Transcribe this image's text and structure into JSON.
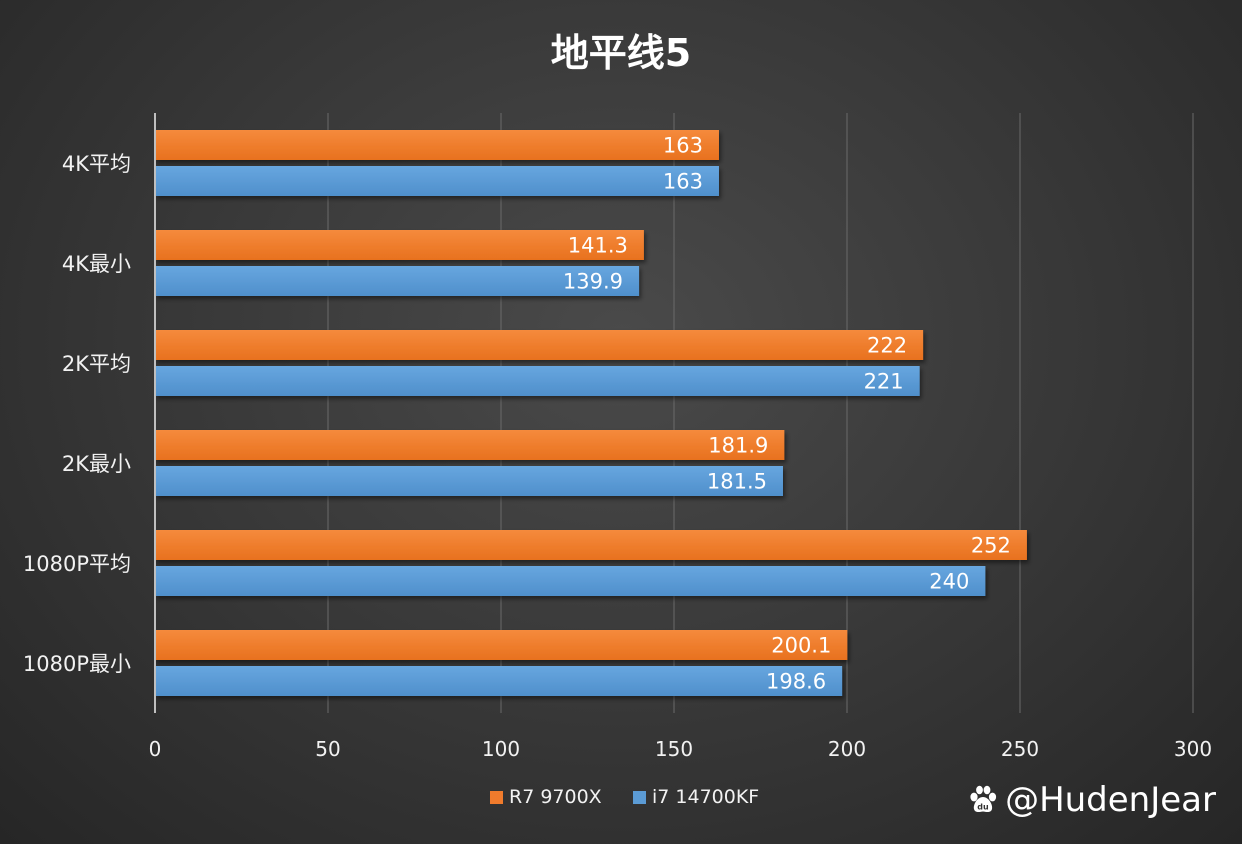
{
  "chart_data": {
    "type": "bar",
    "orientation": "horizontal",
    "title": "地平线5",
    "categories": [
      "4K平均",
      "4K最小",
      "2K平均",
      "2K最小",
      "1080P平均",
      "1080P最小"
    ],
    "series": [
      {
        "name": "R7 9700X",
        "values": [
          163,
          141.3,
          222,
          181.9,
          252,
          200.1
        ],
        "color": "#f07b2c"
      },
      {
        "name": "i7 14700KF",
        "values": [
          163,
          139.9,
          221,
          181.5,
          240,
          198.6
        ],
        "color": "#5b9bd5"
      }
    ],
    "value_labels": [
      [
        "163",
        "141.3",
        "222",
        "181.9",
        "252",
        "200.1"
      ],
      [
        "163",
        "139.9",
        "221",
        "181.5",
        "240",
        "198.6"
      ]
    ],
    "xlim": [
      0,
      300
    ],
    "xticks": [
      "0",
      "50",
      "100",
      "150",
      "200",
      "250",
      "300"
    ],
    "xtick_values": [
      0,
      50,
      100,
      150,
      200,
      250,
      300
    ],
    "grid": true,
    "legend_position": "bottom"
  },
  "watermark": {
    "text": "@HudenJear",
    "icon": "baidu-paw-icon"
  },
  "colors": {
    "grid": "#6a6a6a",
    "axis": "#bfbfbf",
    "text": "#ffffff",
    "tick_text": "#f2f2f2"
  }
}
